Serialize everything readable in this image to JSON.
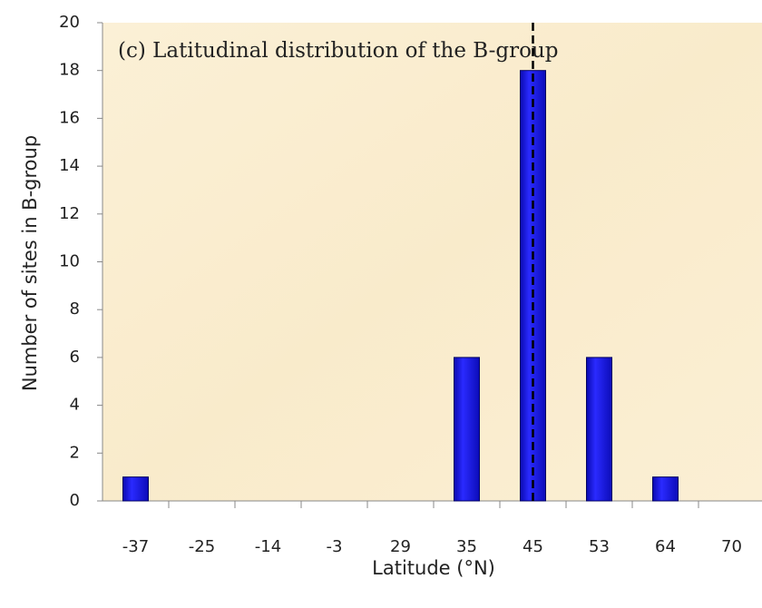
{
  "chart_data": {
    "type": "bar",
    "title": "(c) Latitudinal distribution of the B-group",
    "x_label": "Latitude (°N)",
    "y_label": "Number of sites in B-group",
    "categories": [
      "-37",
      "-25",
      "-14",
      "-3",
      "29",
      "35",
      "45",
      "53",
      "64",
      "70"
    ],
    "values": [
      1,
      0,
      0,
      0,
      0,
      6,
      18,
      6,
      1,
      0
    ],
    "color": "#1c1ce8",
    "ylim": [
      0,
      20
    ],
    "yticks": [
      0,
      2,
      4,
      6,
      8,
      10,
      12,
      14,
      16,
      18,
      20
    ]
  }
}
